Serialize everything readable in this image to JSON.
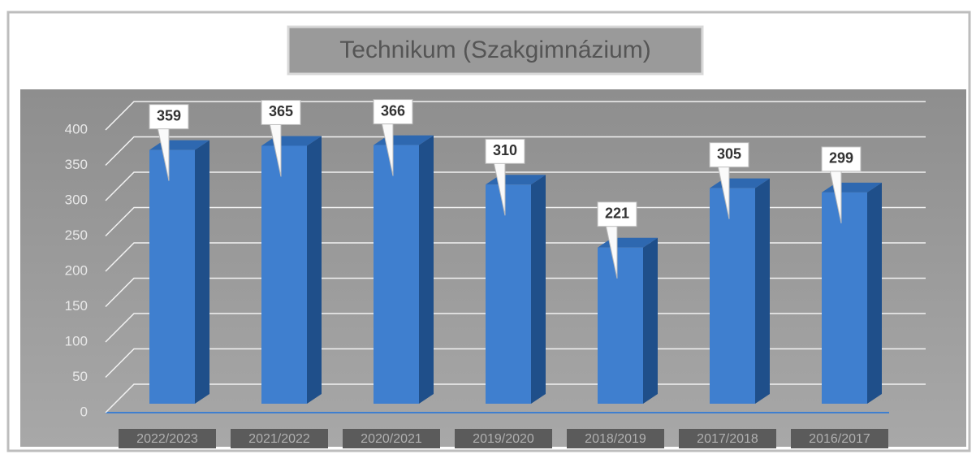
{
  "chart_data": {
    "type": "bar3d",
    "title": "Technikum (Szakgimnázium)",
    "categories": [
      "2022/2023",
      "2021/2022",
      "2020/2021",
      "2019/2020",
      "2018/2019",
      "2017/2018",
      "2016/2017"
    ],
    "values": [
      359,
      365,
      366,
      310,
      221,
      305,
      299
    ],
    "color": "#3f7fcf",
    "ylim": [
      0,
      400
    ],
    "yticks": [
      0,
      50,
      100,
      150,
      200,
      250,
      300,
      350,
      400
    ],
    "grid": true
  }
}
